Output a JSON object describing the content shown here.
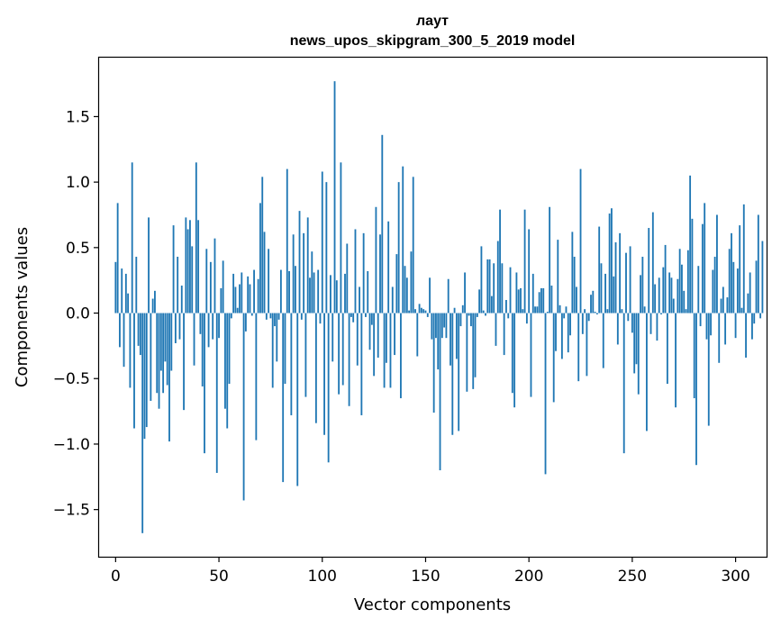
{
  "chart_data": {
    "type": "bar",
    "title": "лаут",
    "subtitle": "news_upos_skipgram_300_5_2019 model",
    "xlabel": "Vector components",
    "ylabel": "Components values",
    "xlim": [
      -8,
      315
    ],
    "ylim": [
      -1.86,
      1.95
    ],
    "xticks": [
      0,
      50,
      100,
      150,
      200,
      250,
      300
    ],
    "yticks": [
      -1.5,
      -1.0,
      -0.5,
      0.0,
      0.5,
      1.0,
      1.5
    ],
    "ytick_labels": [
      "−1.5",
      "−1.0",
      "−0.5",
      "0.0",
      "0.5",
      "1.0",
      "1.5"
    ],
    "bar_color": "#1f77b4",
    "values": [
      0.39,
      0.84,
      -0.26,
      0.34,
      -0.41,
      0.3,
      0.15,
      -0.57,
      1.15,
      -0.88,
      0.43,
      -0.25,
      -0.32,
      -1.68,
      -0.96,
      -0.87,
      0.73,
      -0.67,
      0.11,
      0.17,
      -0.61,
      -0.73,
      -0.44,
      -0.61,
      -0.37,
      -0.55,
      -0.98,
      -0.44,
      0.67,
      -0.23,
      0.43,
      -0.2,
      0.21,
      -0.74,
      0.73,
      0.64,
      0.71,
      0.51,
      -0.4,
      1.15,
      0.71,
      -0.16,
      -0.56,
      -1.07,
      0.49,
      -0.26,
      0.39,
      -0.2,
      0.57,
      -1.22,
      -0.19,
      0.19,
      0.4,
      -0.73,
      -0.88,
      -0.54,
      -0.04,
      0.3,
      0.2,
      0.04,
      0.22,
      0.31,
      -1.43,
      -0.14,
      0.28,
      0.22,
      -0.02,
      0.33,
      -0.97,
      0.26,
      0.84,
      1.04,
      0.62,
      -0.05,
      0.49,
      -0.04,
      -0.57,
      -0.1,
      -0.37,
      -0.05,
      0.33,
      -1.29,
      -0.54,
      1.1,
      0.32,
      -0.78,
      0.6,
      0.36,
      -1.32,
      0.78,
      -0.05,
      0.61,
      -0.64,
      0.73,
      0.27,
      0.47,
      0.31,
      -0.84,
      0.33,
      -0.08,
      1.08,
      -0.93,
      1.0,
      -1.14,
      0.29,
      -0.37,
      1.77,
      0.25,
      -0.62,
      1.15,
      -0.55,
      0.3,
      0.53,
      -0.71,
      -0.03,
      -0.07,
      0.64,
      -0.4,
      0.2,
      -0.78,
      0.61,
      -0.03,
      0.32,
      -0.28,
      -0.09,
      -0.48,
      0.81,
      -0.34,
      0.6,
      1.36,
      -0.57,
      -0.38,
      0.7,
      -0.57,
      0.2,
      -0.32,
      0.45,
      1.0,
      -0.65,
      1.12,
      0.36,
      0.27,
      0.02,
      0.47,
      1.04,
      0.03,
      -0.33,
      0.07,
      0.04,
      0.03,
      0.02,
      -0.03,
      0.27,
      -0.2,
      -0.76,
      -0.19,
      -0.43,
      -1.2,
      -0.19,
      -0.11,
      -0.19,
      0.26,
      -0.4,
      -0.93,
      0.04,
      -0.35,
      -0.9,
      -0.1,
      0.06,
      0.31,
      -0.6,
      -0.02,
      -0.1,
      -0.58,
      -0.49,
      -0.03,
      0.18,
      0.51,
      0.02,
      -0.02,
      0.41,
      0.41,
      0.13,
      0.38,
      -0.25,
      0.55,
      0.79,
      0.38,
      -0.32,
      0.1,
      -0.04,
      0.35,
      -0.61,
      -0.72,
      0.31,
      0.18,
      0.19,
      0.03,
      0.79,
      -0.08,
      0.64,
      -0.64,
      0.3,
      0.05,
      0.05,
      0.16,
      0.19,
      0.19,
      -1.23,
      0.01,
      0.81,
      0.21,
      -0.68,
      -0.29,
      0.56,
      0.06,
      -0.35,
      -0.04,
      0.05,
      -0.3,
      -0.17,
      0.62,
      0.43,
      0.2,
      -0.52,
      1.1,
      -0.16,
      0.03,
      -0.48,
      -0.06,
      0.14,
      0.17,
      0.01,
      -0.01,
      0.66,
      0.38,
      -0.42,
      0.3,
      0.03,
      0.76,
      0.8,
      0.28,
      0.54,
      -0.24,
      0.61,
      0.03,
      -1.07,
      0.46,
      -0.06,
      0.51,
      -0.15,
      -0.46,
      -0.39,
      -0.62,
      0.29,
      0.43,
      0.05,
      -0.9,
      0.65,
      -0.16,
      0.77,
      0.22,
      -0.21,
      0.27,
      -0.01,
      0.35,
      0.52,
      -0.54,
      0.31,
      0.27,
      0.11,
      -0.72,
      0.26,
      0.49,
      0.37,
      0.17,
      0.03,
      0.48,
      1.05,
      0.72,
      -0.65,
      -1.16,
      0.36,
      -0.1,
      0.68,
      0.84,
      -0.2,
      -0.86,
      -0.17,
      0.33,
      0.43,
      0.75,
      -0.38,
      0.11,
      0.2,
      -0.24,
      0.12,
      0.49,
      0.61,
      0.39,
      -0.19,
      0.34,
      0.67,
      0.04,
      0.83,
      -0.34,
      0.15,
      0.31,
      -0.2,
      -0.08,
      0.4,
      0.75,
      -0.04,
      0.55
    ]
  }
}
